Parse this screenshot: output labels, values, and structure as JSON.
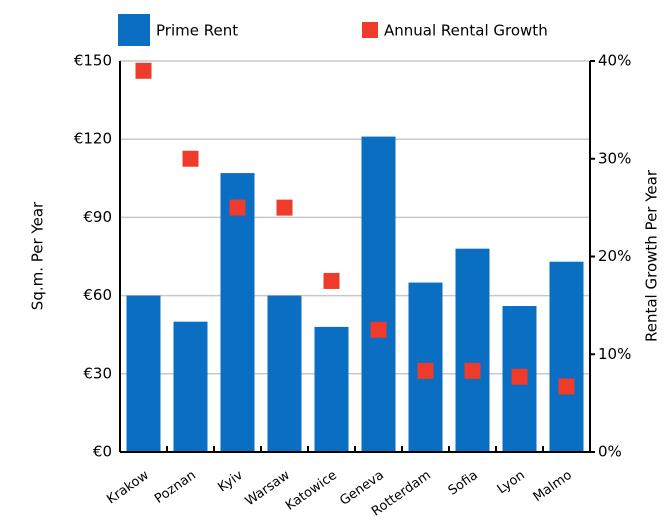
{
  "chart_data": {
    "type": "bar",
    "categories": [
      "Krakow",
      "Poznan",
      "Kyiv",
      "Warsaw",
      "Katowice",
      "Geneva",
      "Rotterdam",
      "Sofia",
      "Lyon",
      "Malmo"
    ],
    "series": [
      {
        "name": "Prime Rent",
        "color": "#0a6fc2",
        "type": "bar",
        "axis": "y",
        "values": [
          60,
          50,
          107,
          60,
          48,
          121,
          65,
          78,
          56,
          73
        ]
      },
      {
        "name": "Annual Rental Growth",
        "color": "#ee3b2b",
        "type": "scatter",
        "axis": "y2",
        "values": [
          39,
          30,
          25,
          25,
          17.5,
          12.5,
          8.3,
          8.3,
          7.7,
          6.7
        ]
      }
    ],
    "ylabel": "Sq.m. Per Year",
    "y2label": "Rental Growth Per Year",
    "ylim": [
      0,
      150
    ],
    "yticks": [
      {
        "value": 0,
        "label": "€0"
      },
      {
        "value": 30,
        "label": "€30"
      },
      {
        "value": 60,
        "label": "€60"
      },
      {
        "value": 90,
        "label": "€90"
      },
      {
        "value": 120,
        "label": "€120"
      },
      {
        "value": 150,
        "label": "€150"
      }
    ],
    "y2lim": [
      0,
      40
    ],
    "y2ticks": [
      {
        "value": 0,
        "label": "0%"
      },
      {
        "value": 10,
        "label": "10%"
      },
      {
        "value": 20,
        "label": "20%"
      },
      {
        "value": 30,
        "label": "30%"
      },
      {
        "value": 40,
        "label": "40%"
      }
    ],
    "grid": true,
    "legend": "top"
  }
}
